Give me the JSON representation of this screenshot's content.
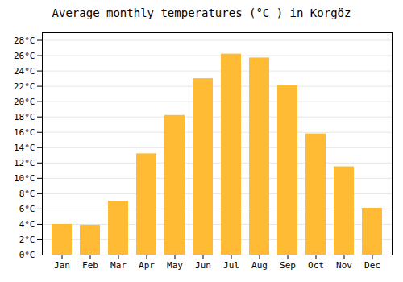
{
  "chart_data": {
    "type": "bar",
    "title": "Average monthly temperatures (°C ) in Korgöz",
    "categories": [
      "Jan",
      "Feb",
      "Mar",
      "Apr",
      "May",
      "Jun",
      "Jul",
      "Aug",
      "Sep",
      "Oct",
      "Nov",
      "Dec"
    ],
    "values": [
      4.0,
      3.9,
      7.0,
      13.2,
      18.2,
      23.0,
      26.2,
      25.7,
      22.1,
      15.8,
      11.5,
      6.1
    ],
    "color": "#FFBB33",
    "ylim": [
      0,
      29
    ],
    "yticks": [
      {
        "value": 0,
        "label": "0°C"
      },
      {
        "value": 2,
        "label": "2°C"
      },
      {
        "value": 4,
        "label": "4°C"
      },
      {
        "value": 6,
        "label": "6°C"
      },
      {
        "value": 8,
        "label": "8°C"
      },
      {
        "value": 10,
        "label": "10°C"
      },
      {
        "value": 12,
        "label": "12°C"
      },
      {
        "value": 14,
        "label": "14°C"
      },
      {
        "value": 16,
        "label": "16°C"
      },
      {
        "value": 18,
        "label": "18°C"
      },
      {
        "value": 20,
        "label": "20°C"
      },
      {
        "value": 22,
        "label": "22°C"
      },
      {
        "value": 24,
        "label": "24°C"
      },
      {
        "value": 26,
        "label": "26°C"
      },
      {
        "value": 28,
        "label": "28°C"
      }
    ],
    "grid": true
  }
}
